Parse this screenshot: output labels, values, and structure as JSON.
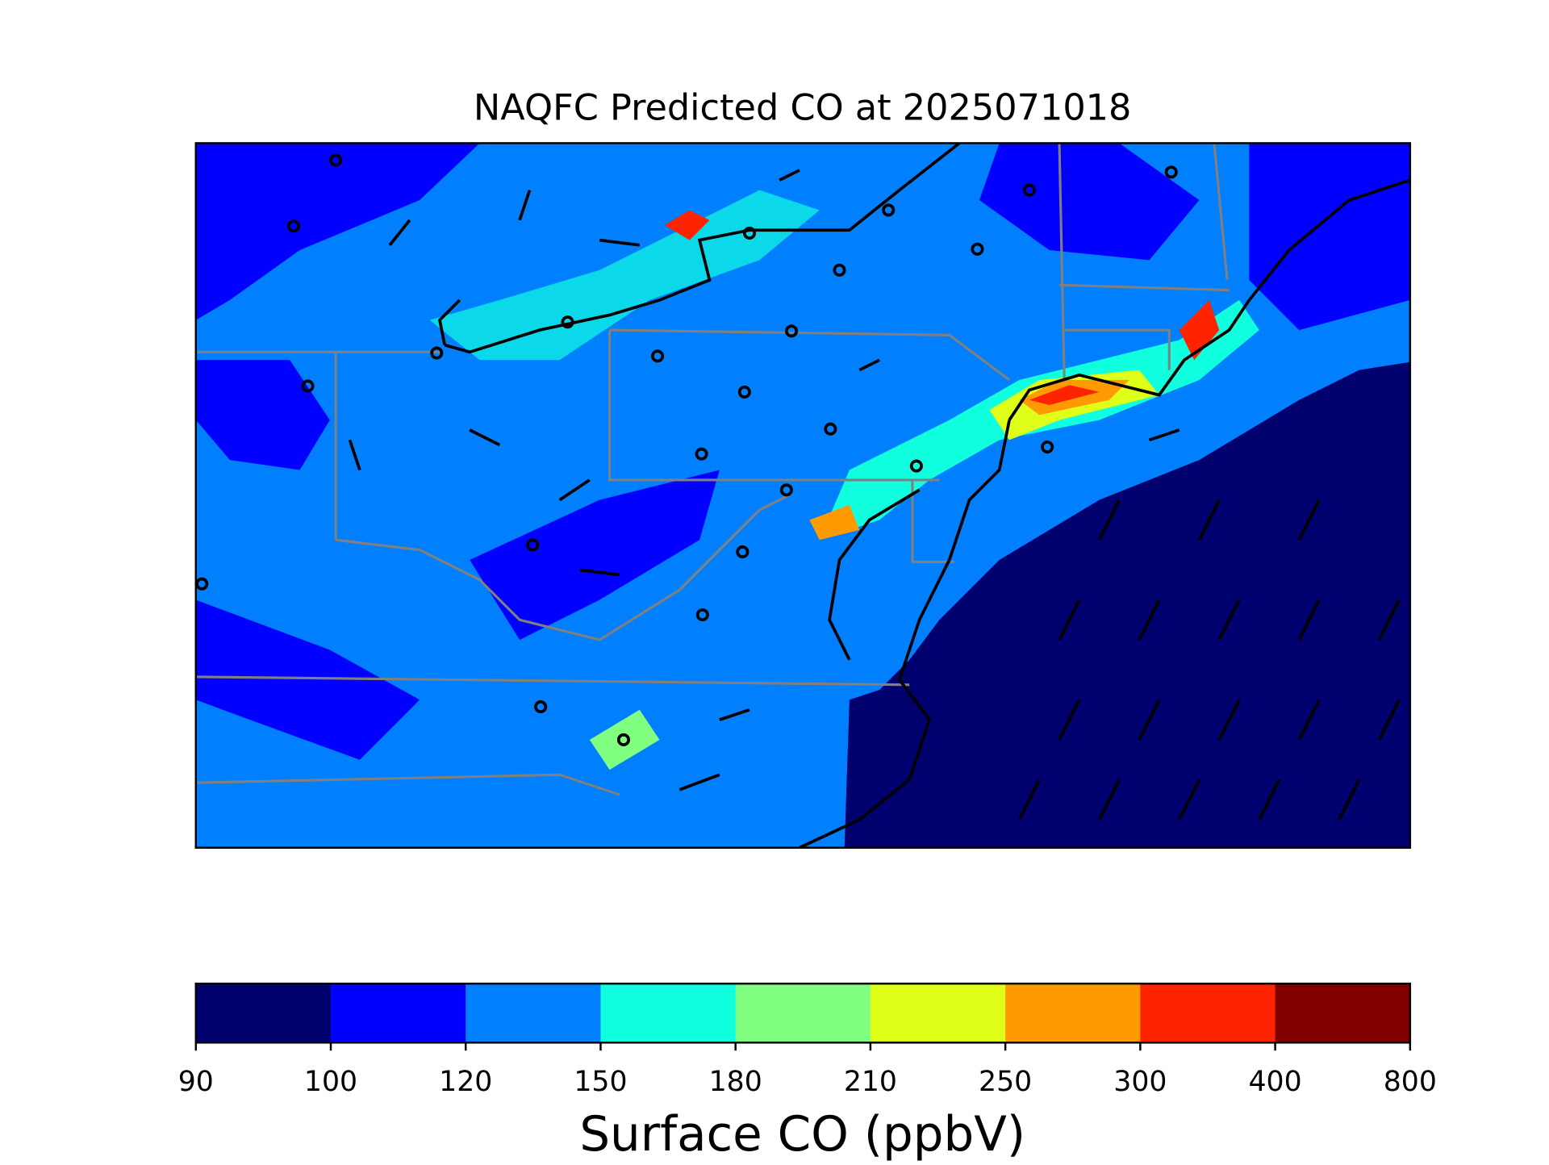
{
  "title": "NAQFC Predicted CO at 2025071018",
  "colorbar": {
    "label": "Surface CO (ppbV)",
    "ticks": [
      90,
      100,
      120,
      150,
      180,
      210,
      250,
      300,
      400,
      800
    ],
    "colors": [
      "#00006e",
      "#0000ff",
      "#0080ff",
      "#10ffdf",
      "#80ff80",
      "#e0ff18",
      "#ff9a00",
      "#ff2400",
      "#800000"
    ]
  }
}
